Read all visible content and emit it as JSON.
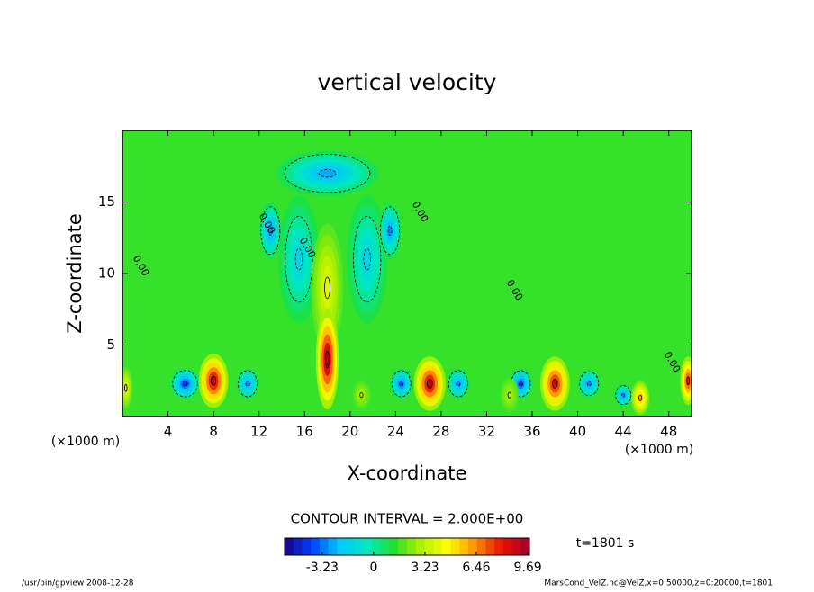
{
  "chart_data": {
    "type": "contour",
    "title": "vertical velocity",
    "xlabel": "X-coordinate",
    "ylabel": "Z-coordinate",
    "x_unit": "(×1000 m)",
    "y_unit": "(×1000 m)",
    "xlim": [
      0,
      50
    ],
    "ylim": [
      0,
      20
    ],
    "xticks": [
      4,
      8,
      12,
      16,
      20,
      24,
      28,
      32,
      36,
      40,
      44,
      48
    ],
    "yticks": [
      5,
      10,
      15
    ],
    "contour_interval": "CONTOUR INTERVAL = 2.000E+00",
    "time_label": "t=1801 s",
    "contour_labels": [
      "0.00",
      "0.00",
      "0.00",
      "0.00",
      "0.00",
      "0.00"
    ],
    "background_value": 1.5,
    "clim": [
      -5.6,
      9.8
    ],
    "cticks": [
      -3.23,
      0,
      3.23,
      6.46,
      9.69
    ],
    "colormap": [
      "#1a0080",
      "#0040ff",
      "#00c8ff",
      "#00e8c0",
      "#20e030",
      "#b0f000",
      "#ffff00",
      "#ff9000",
      "#e81000",
      "#a00030"
    ],
    "blobs": [
      {
        "x": 15.5,
        "z": 11,
        "value": -1.5,
        "rx": 1.8,
        "rz": 4.5
      },
      {
        "x": 21.5,
        "z": 11,
        "value": -1.5,
        "rx": 1.8,
        "rz": 4.5
      },
      {
        "x": 18,
        "z": 17,
        "value": -2.5,
        "rx": 4.5,
        "rz": 1.6
      },
      {
        "x": 13,
        "z": 13,
        "value": -3,
        "rx": 1,
        "rz": 2
      },
      {
        "x": 23.5,
        "z": 13,
        "value": -3,
        "rx": 1,
        "rz": 2
      },
      {
        "x": 18,
        "z": 9,
        "value": 4,
        "rx": 1.4,
        "rz": 4.5
      },
      {
        "x": 18,
        "z": 4,
        "value": 9.69,
        "rx": 1,
        "rz": 3.5
      },
      {
        "x": 5.5,
        "z": 2.3,
        "value": -4,
        "rx": 1.3,
        "rz": 1.1
      },
      {
        "x": 11,
        "z": 2.3,
        "value": -3,
        "rx": 1,
        "rz": 1.1
      },
      {
        "x": 24.5,
        "z": 2.3,
        "value": -3.5,
        "rx": 1,
        "rz": 1.1
      },
      {
        "x": 29.5,
        "z": 2.3,
        "value": -3,
        "rx": 1,
        "rz": 1.1
      },
      {
        "x": 35,
        "z": 2.3,
        "value": -4,
        "rx": 1,
        "rz": 1.1
      },
      {
        "x": 41,
        "z": 2.3,
        "value": -3,
        "rx": 1,
        "rz": 1
      },
      {
        "x": 44,
        "z": 1.5,
        "value": -3,
        "rx": 0.8,
        "rz": 0.8
      },
      {
        "x": 0.3,
        "z": 2,
        "value": 4,
        "rx": 0.6,
        "rz": 1.5
      },
      {
        "x": 21,
        "z": 1.5,
        "value": 3,
        "rx": 0.8,
        "rz": 1
      },
      {
        "x": 34,
        "z": 1.5,
        "value": 3,
        "rx": 0.8,
        "rz": 1.2
      },
      {
        "x": 8,
        "z": 2.5,
        "value": 9,
        "rx": 1.3,
        "rz": 1.9
      },
      {
        "x": 27,
        "z": 2.3,
        "value": 9,
        "rx": 1.4,
        "rz": 1.9
      },
      {
        "x": 38,
        "z": 2.3,
        "value": 8.5,
        "rx": 1.3,
        "rz": 1.9
      },
      {
        "x": 45.5,
        "z": 1.3,
        "value": 6,
        "rx": 0.8,
        "rz": 1.2
      },
      {
        "x": 49.7,
        "z": 2.5,
        "value": 8,
        "rx": 0.7,
        "rz": 1.7
      }
    ],
    "footer_left": "/usr/bin/gpview   2008-12-28",
    "footer_right": "MarsCond_VelZ.nc@VelZ,x=0:50000,z=0:20000,t=1801"
  }
}
